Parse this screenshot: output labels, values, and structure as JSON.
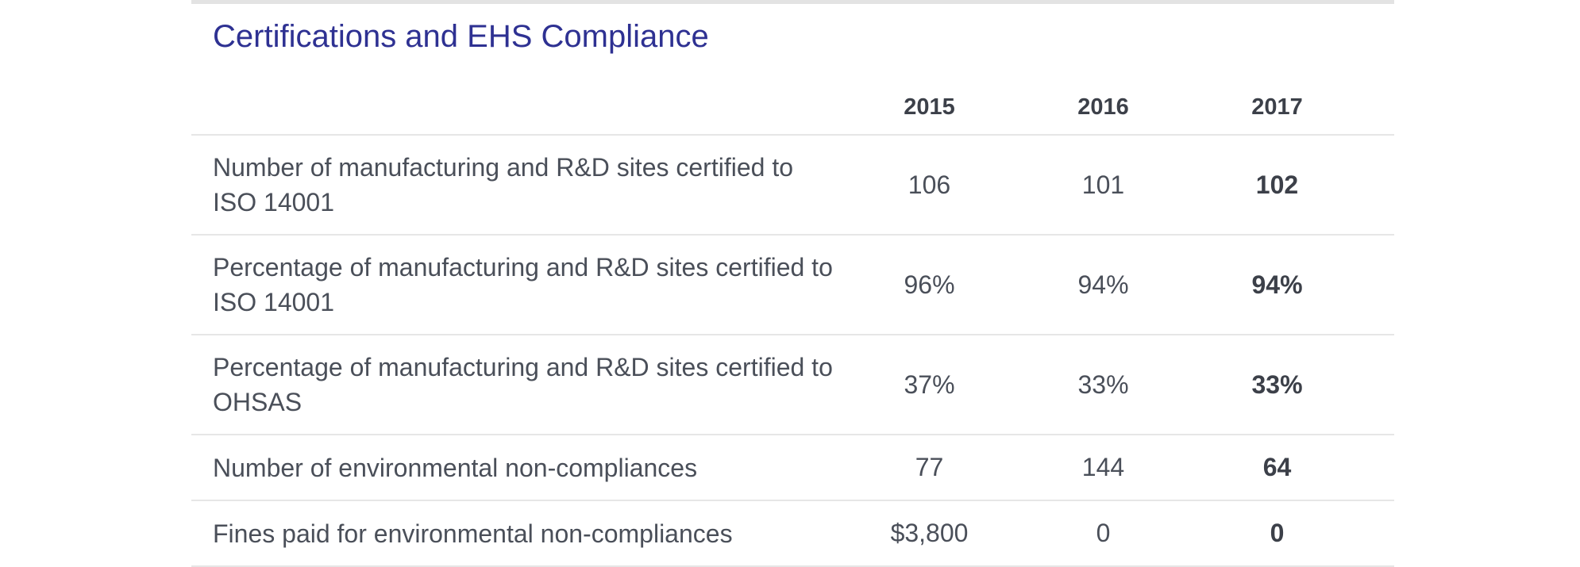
{
  "title": "Certifications and EHS Compliance",
  "table": {
    "columns": [
      "2015",
      "2016",
      "2017"
    ],
    "rows": [
      {
        "label": "Number of manufacturing and R&D sites certified to ISO 14001",
        "values": [
          "106",
          "101",
          "102"
        ]
      },
      {
        "label": "Percentage of manufacturing and R&D sites certified to ISO 14001",
        "values": [
          "96%",
          "94%",
          "94%"
        ]
      },
      {
        "label": "Percentage of manufacturing and R&D sites certified to OHSAS",
        "values": [
          "37%",
          "33%",
          "33%"
        ]
      },
      {
        "label": "Number of environmental non-compliances",
        "values": [
          "77",
          "144",
          "64"
        ]
      },
      {
        "label": "Fines paid for environmental non-compliances",
        "values": [
          "$3,800",
          "0",
          "0"
        ]
      }
    ]
  },
  "colors": {
    "title": "#2e3192",
    "text": "#444a55",
    "rule": "#e6e6e6"
  }
}
